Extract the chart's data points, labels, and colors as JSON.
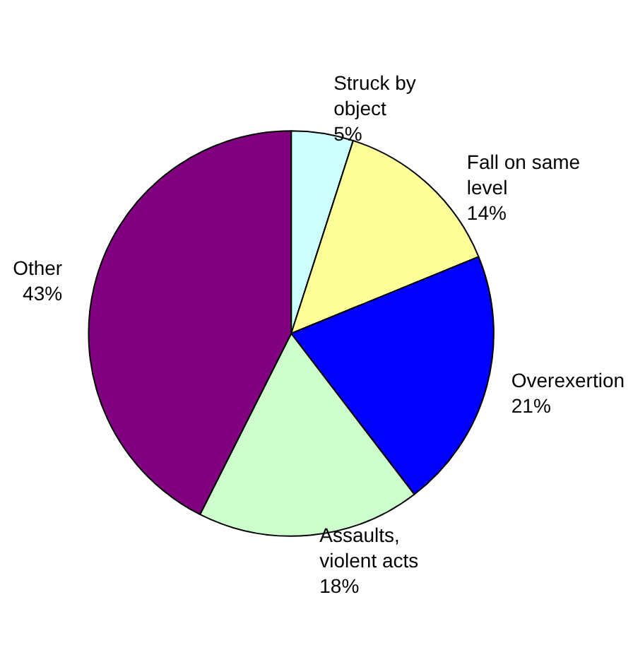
{
  "chart_data": {
    "type": "pie",
    "categories": [
      "Struck by object",
      "Fall on same level",
      "Overexertion",
      "Assaults, violent acts",
      "Other"
    ],
    "values": [
      5,
      14,
      21,
      18,
      43
    ],
    "value_labels": [
      "5%",
      "14%",
      "21%",
      "18%",
      "43%"
    ],
    "colors": [
      "#ccffff",
      "#ffff99",
      "#0000ff",
      "#ccffcc",
      "#800080"
    ],
    "legend": false
  }
}
